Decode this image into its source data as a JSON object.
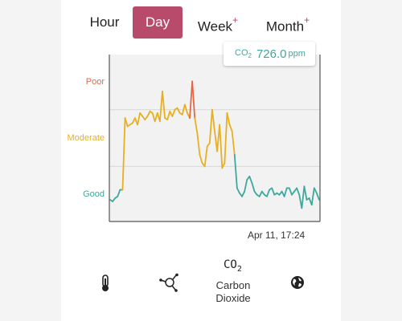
{
  "tabs": [
    {
      "label": "Hour",
      "plus": ""
    },
    {
      "label": "Day",
      "plus": "",
      "active": true
    },
    {
      "label": "Week",
      "plus": "+"
    },
    {
      "label": "Month",
      "plus": "+"
    }
  ],
  "reading": {
    "symbol": "CO",
    "subscript": "2",
    "value": "726.0",
    "unit": "ppm"
  },
  "timestamp": "Apr 11, 17:24",
  "bottom_nav": {
    "co2_symbol": "CO",
    "co2_subscript": "2",
    "co2_label_line1": "Carbon",
    "co2_label_line2": "Dioxide",
    "icons": [
      "thermometer-icon",
      "molecule-icon",
      "globe-icon"
    ]
  },
  "colors": {
    "good": "#3fa89c",
    "moderate": "#e8b020",
    "poor": "#e06848",
    "active_tab": "#b84a6c"
  },
  "chart_data": {
    "type": "line",
    "ylabels": [
      {
        "label": "Poor",
        "color": "#e06848"
      },
      {
        "label": "Moderate",
        "color": "#e8b020"
      },
      {
        "label": "Good",
        "color": "#3fa89c"
      }
    ],
    "grid": true,
    "series": [
      {
        "values": [
          0.13,
          0.12,
          0.14,
          0.15,
          0.19,
          0.19,
          0.62,
          0.57,
          0.58,
          0.59,
          0.62,
          0.58,
          0.65,
          0.63,
          0.61,
          0.63,
          0.66,
          0.65,
          0.6,
          0.65,
          0.6,
          0.78,
          0.62,
          0.61,
          0.66,
          0.63,
          0.67,
          0.68,
          0.65,
          0.64,
          0.7,
          0.65,
          0.62,
          0.84,
          0.62,
          0.53,
          0.4,
          0.35,
          0.33,
          0.45,
          0.47,
          0.67,
          0.54,
          0.42,
          0.58,
          0.32,
          0.35,
          0.65,
          0.58,
          0.54,
          0.4,
          0.2,
          0.17,
          0.15,
          0.18,
          0.25,
          0.27,
          0.23,
          0.18,
          0.16,
          0.15,
          0.18,
          0.16,
          0.15,
          0.19,
          0.2,
          0.16,
          0.17,
          0.16,
          0.18,
          0.15,
          0.2,
          0.2,
          0.16,
          0.18,
          0.2,
          0.16,
          0.08,
          0.21,
          0.13,
          0.14,
          0.1,
          0.2,
          0.17,
          0.13
        ]
      }
    ]
  }
}
